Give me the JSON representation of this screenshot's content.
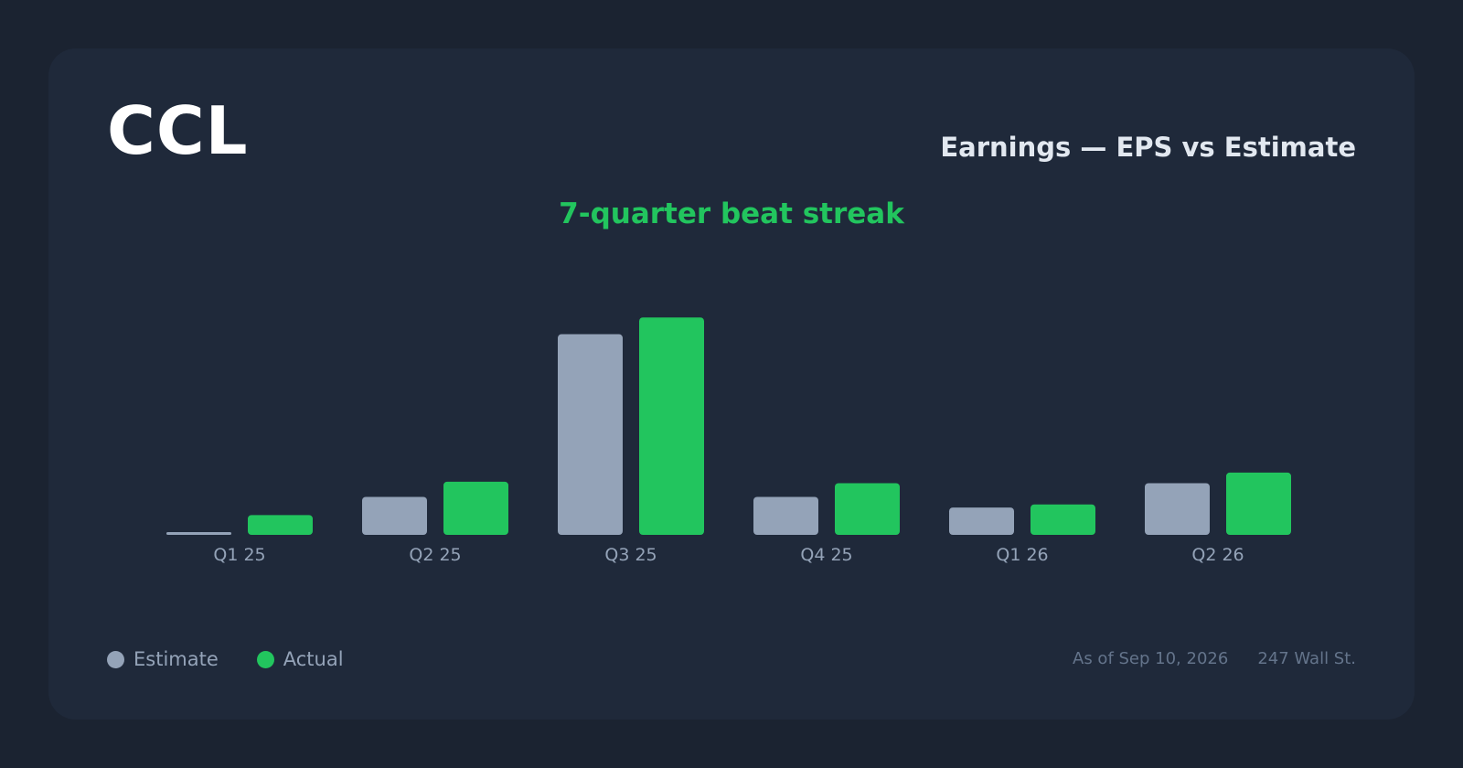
{
  "header": {
    "ticker": "CCL",
    "title": "Earnings — EPS vs Estimate",
    "subtitle": "7-quarter beat streak"
  },
  "colors": {
    "estimate": "#94a3b8",
    "actual": "#22c55e",
    "axis_label": "#94a3b8"
  },
  "legend": {
    "estimate_label": "Estimate",
    "actual_label": "Actual"
  },
  "footer": {
    "as_of": "As of Sep 10, 2026",
    "source": "247 Wall St."
  },
  "chart_data": {
    "type": "bar",
    "categories": [
      "Q1 25",
      "Q2 25",
      "Q3 25",
      "Q4 25",
      "Q1 26",
      "Q2 26"
    ],
    "series": [
      {
        "name": "Estimate",
        "values": [
          0.01,
          0.25,
          1.32,
          0.25,
          0.18,
          0.34
        ]
      },
      {
        "name": "Actual",
        "values": [
          0.13,
          0.35,
          1.43,
          0.34,
          0.2,
          0.41
        ]
      }
    ],
    "ylim": [
      0,
      1.6
    ],
    "grid": false,
    "legend_position": "bottom-left"
  }
}
